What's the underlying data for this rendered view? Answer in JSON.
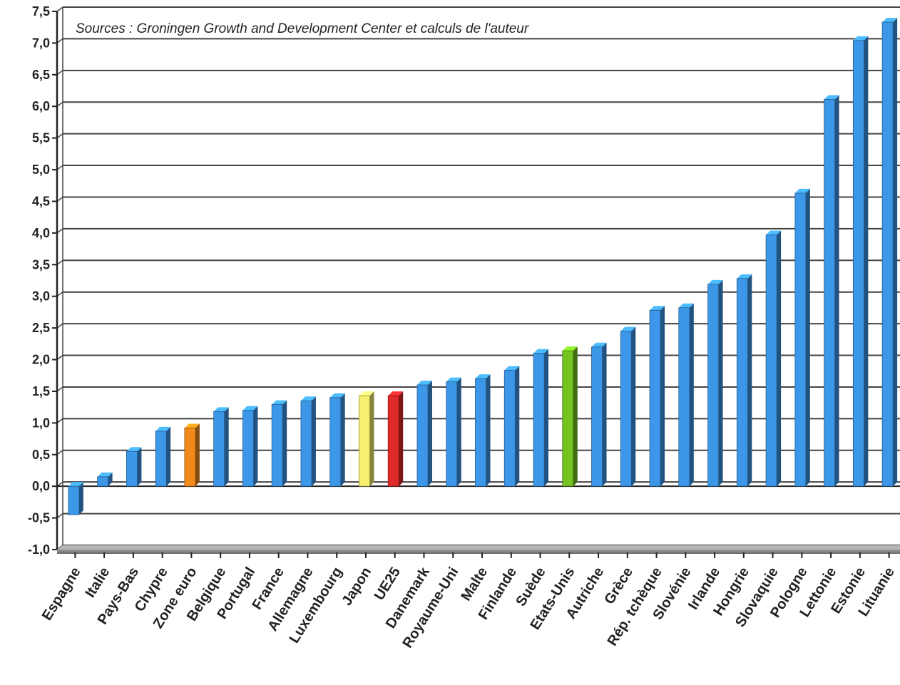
{
  "chart_data": {
    "type": "bar",
    "title": "",
    "annotation": "Sources : Groningen Growth and Development Center et calculs de l'auteur",
    "xlabel": "",
    "ylabel": "",
    "ylim": [
      -1.0,
      7.5
    ],
    "yticks": [
      "-1,0",
      "-0,5",
      "0,0",
      "0,5",
      "1,0",
      "1,5",
      "2,0",
      "2,5",
      "3,0",
      "3,5",
      "4,0",
      "4,5",
      "5,0",
      "5,5",
      "6,0",
      "6,5",
      "7,0",
      "7,5"
    ],
    "grid": true,
    "categories": [
      "Espagne",
      "Italie",
      "Pays-Bas",
      "Chypre",
      "Zone euro",
      "Belgique",
      "Portugal",
      "France",
      "Allemagne",
      "Luxembourg",
      "Japon",
      "UE25",
      "Danemark",
      "Royaume-Uni",
      "Malte",
      "Finlande",
      "Suède",
      "Etats-Unis",
      "Autriche",
      "Grèce",
      "Rép. tchèque",
      "Slovénie",
      "Irlande",
      "Hongrie",
      "Slovaquie",
      "Pologne",
      "Lettonie",
      "Estonie",
      "Lituanie"
    ],
    "values": [
      -0.45,
      0.15,
      0.55,
      0.87,
      0.92,
      1.18,
      1.2,
      1.29,
      1.35,
      1.4,
      1.43,
      1.43,
      1.6,
      1.65,
      1.7,
      1.83,
      2.1,
      2.14,
      2.2,
      2.45,
      2.78,
      2.82,
      3.19,
      3.28,
      3.97,
      4.63,
      6.11,
      7.04,
      7.33
    ],
    "colors": {
      "default": "#3d97e8",
      "Zone euro": "#f28a1b",
      "Japon": "#f5f06e",
      "UE25": "#e02a2a",
      "Etats-Unis": "#74c421"
    }
  }
}
